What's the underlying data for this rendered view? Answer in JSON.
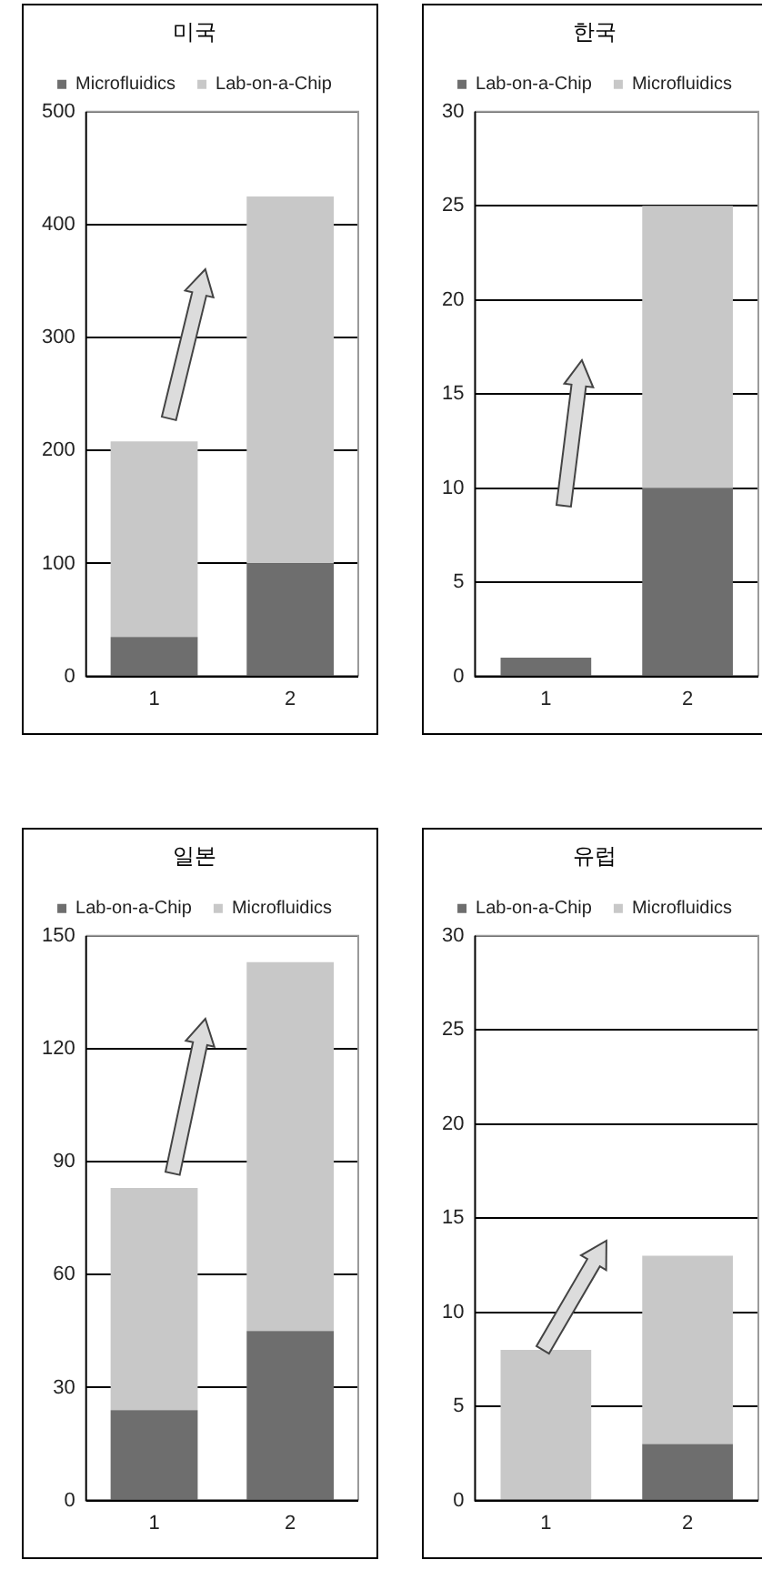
{
  "chart_data": [
    {
      "type": "bar",
      "title": "미국",
      "stacked": true,
      "categories": [
        "1",
        "2"
      ],
      "legend": "top",
      "grid": "y",
      "ylim": [
        0,
        500
      ],
      "yticks": [
        0,
        100,
        200,
        300,
        400,
        500
      ],
      "series": [
        {
          "name": "Microfluidics",
          "color": "#6e6e6e",
          "values": [
            35,
            100
          ]
        },
        {
          "name": "Lab-on-a-Chip",
          "color": "#c8c8c8",
          "values": [
            173,
            325
          ]
        }
      ]
    },
    {
      "type": "bar",
      "title": "한국",
      "stacked": true,
      "categories": [
        "1",
        "2"
      ],
      "legend": "top",
      "grid": "y",
      "ylim": [
        0,
        30
      ],
      "yticks": [
        0,
        5,
        10,
        15,
        20,
        25,
        30
      ],
      "series": [
        {
          "name": "Lab-on-a-Chip",
          "color": "#6e6e6e",
          "values": [
            1,
            10
          ]
        },
        {
          "name": "Microfluidics",
          "color": "#c8c8c8",
          "values": [
            0,
            15
          ]
        }
      ]
    },
    {
      "type": "bar",
      "title": "일본",
      "stacked": true,
      "categories": [
        "1",
        "2"
      ],
      "legend": "top",
      "grid": "y",
      "ylim": [
        0,
        150
      ],
      "yticks": [
        0,
        30,
        60,
        90,
        120,
        150
      ],
      "series": [
        {
          "name": "Lab-on-a-Chip",
          "color": "#6e6e6e",
          "values": [
            24,
            45
          ]
        },
        {
          "name": "Microfluidics",
          "color": "#c8c8c8",
          "values": [
            59,
            98
          ]
        }
      ]
    },
    {
      "type": "bar",
      "title": "유럽",
      "stacked": true,
      "categories": [
        "1",
        "2"
      ],
      "legend": "top",
      "grid": "y",
      "ylim": [
        0,
        30
      ],
      "yticks": [
        0,
        5,
        10,
        15,
        20,
        25,
        30
      ],
      "series": [
        {
          "name": "Lab-on-a-Chip",
          "color": "#6e6e6e",
          "values": [
            0,
            3
          ]
        },
        {
          "name": "Microfluidics",
          "color": "#c8c8c8",
          "values": [
            8,
            10
          ]
        }
      ]
    }
  ]
}
